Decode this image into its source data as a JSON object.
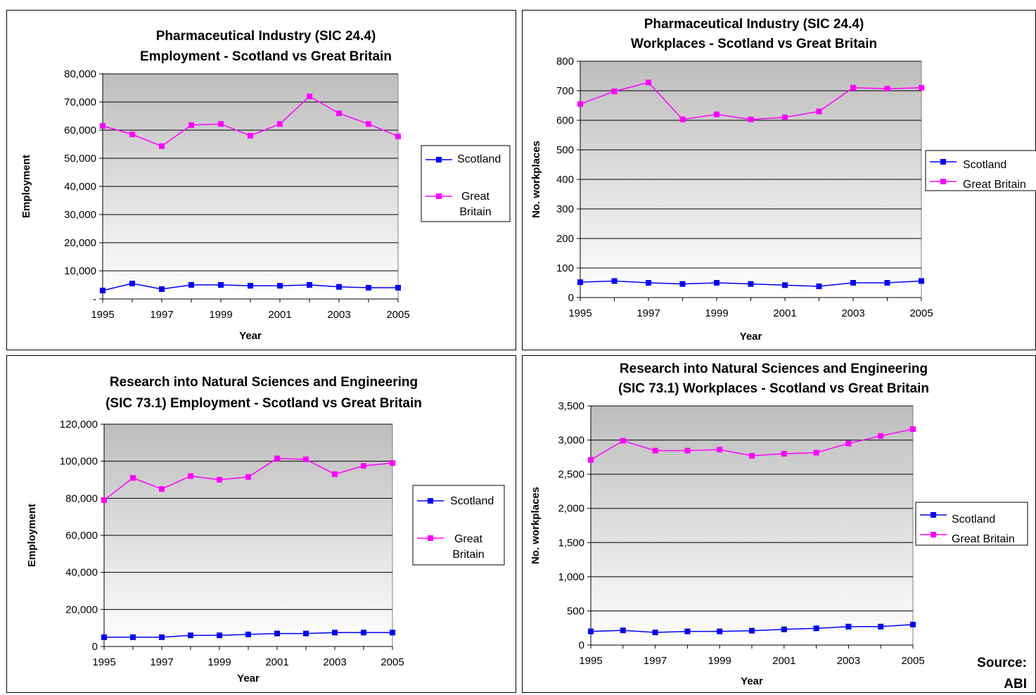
{
  "source": {
    "line1": "Source:",
    "line2": "ABI"
  },
  "chart_data": [
    {
      "type": "line",
      "title": [
        "Pharmaceutical Industry (SIC 24.4)",
        "Employment - Scotland vs Great Britain"
      ],
      "xlabel": "Year",
      "ylabel": "Employment",
      "x": [
        1995,
        1996,
        1997,
        1998,
        1999,
        2000,
        2001,
        2002,
        2003,
        2004,
        2005
      ],
      "xticks": [
        "1995",
        "1997",
        "1999",
        "2001",
        "2003",
        "2005"
      ],
      "ylim": [
        0,
        80000
      ],
      "yticks": [
        "-",
        "10,000",
        "20,000",
        "30,000",
        "40,000",
        "50,000",
        "60,000",
        "70,000",
        "80,000"
      ],
      "series": [
        {
          "name": "Scotland",
          "color": "#0000ff",
          "values": [
            3000,
            5500,
            3500,
            5000,
            5000,
            4700,
            4700,
            5000,
            4300,
            4000,
            4000
          ]
        },
        {
          "name": "Great Britain",
          "color": "#ff00ff",
          "values": [
            61500,
            58500,
            54300,
            61800,
            62200,
            58000,
            62200,
            72000,
            66000,
            62200,
            57800
          ]
        }
      ],
      "legend_labels": [
        [
          "Scotland"
        ],
        [
          "Great",
          "Britain"
        ]
      ],
      "legend": "right",
      "grid": true
    },
    {
      "type": "line",
      "title": [
        "Pharmaceutical Industry (SIC 24.4)",
        "Workplaces - Scotland vs Great Britain"
      ],
      "xlabel": "Year",
      "ylabel": "No. workplaces",
      "x": [
        1995,
        1996,
        1997,
        1998,
        1999,
        2000,
        2001,
        2002,
        2003,
        2004,
        2005
      ],
      "xticks": [
        "1995",
        "1997",
        "1999",
        "2001",
        "2003",
        "2005"
      ],
      "ylim": [
        0,
        800
      ],
      "yticks": [
        "0",
        "100",
        "200",
        "300",
        "400",
        "500",
        "600",
        "700",
        "800"
      ],
      "series": [
        {
          "name": "Scotland",
          "color": "#0000ff",
          "values": [
            52,
            56,
            50,
            46,
            50,
            46,
            42,
            38,
            50,
            50,
            56
          ]
        },
        {
          "name": "Great Britain",
          "color": "#ff00ff",
          "values": [
            655,
            698,
            728,
            603,
            620,
            603,
            610,
            630,
            710,
            707,
            710
          ]
        }
      ],
      "legend_labels": [
        [
          "Scotland"
        ],
        [
          "Great Britain"
        ]
      ],
      "legend": "right",
      "grid": true
    },
    {
      "type": "line",
      "title": [
        "Research into Natural Sciences and Engineering",
        "(SIC 73.1) Employment - Scotland vs Great Britain"
      ],
      "xlabel": "Year",
      "ylabel": "Employment",
      "x": [
        1995,
        1996,
        1997,
        1998,
        1999,
        2000,
        2001,
        2002,
        2003,
        2004,
        2005
      ],
      "xticks": [
        "1995",
        "1997",
        "1999",
        "2001",
        "2003",
        "2005"
      ],
      "ylim": [
        0,
        120000
      ],
      "yticks": [
        "0",
        "20,000",
        "40,000",
        "60,000",
        "80,000",
        "100,000",
        "120,000"
      ],
      "series": [
        {
          "name": "Scotland",
          "color": "#0000ff",
          "values": [
            5000,
            5000,
            5000,
            6000,
            6000,
            6500,
            7000,
            7000,
            7500,
            7500,
            7500
          ]
        },
        {
          "name": "Great Britain",
          "color": "#ff00ff",
          "values": [
            79000,
            91000,
            85000,
            92000,
            90000,
            91500,
            101500,
            101000,
            93000,
            97500,
            99000
          ]
        }
      ],
      "legend_labels": [
        [
          "Scotland"
        ],
        [
          "Great",
          "Britain"
        ]
      ],
      "legend": "right",
      "grid": true
    },
    {
      "type": "line",
      "title": [
        "Research into Natural Sciences and Engineering",
        "(SIC 73.1) Workplaces - Scotland vs Great Britain"
      ],
      "xlabel": "Year",
      "ylabel": "No. workplaces",
      "x": [
        1995,
        1996,
        1997,
        1998,
        1999,
        2000,
        2001,
        2002,
        2003,
        2004,
        2005
      ],
      "xticks": [
        "1995",
        "1997",
        "1999",
        "2001",
        "2003",
        "2005"
      ],
      "ylim": [
        0,
        3500
      ],
      "yticks": [
        "0",
        "500",
        "1,000",
        "1,500",
        "2,000",
        "2,500",
        "3,000",
        "3,500"
      ],
      "series": [
        {
          "name": "Scotland",
          "color": "#0000ff",
          "values": [
            200,
            215,
            185,
            200,
            200,
            210,
            230,
            245,
            270,
            270,
            300
          ]
        },
        {
          "name": "Great Britain",
          "color": "#ff00ff",
          "values": [
            2710,
            2990,
            2845,
            2845,
            2860,
            2770,
            2800,
            2815,
            2950,
            3060,
            3160
          ]
        }
      ],
      "legend_labels": [
        [
          "Scotland"
        ],
        [
          "Great Britain"
        ]
      ],
      "legend": "right",
      "grid": true
    }
  ]
}
